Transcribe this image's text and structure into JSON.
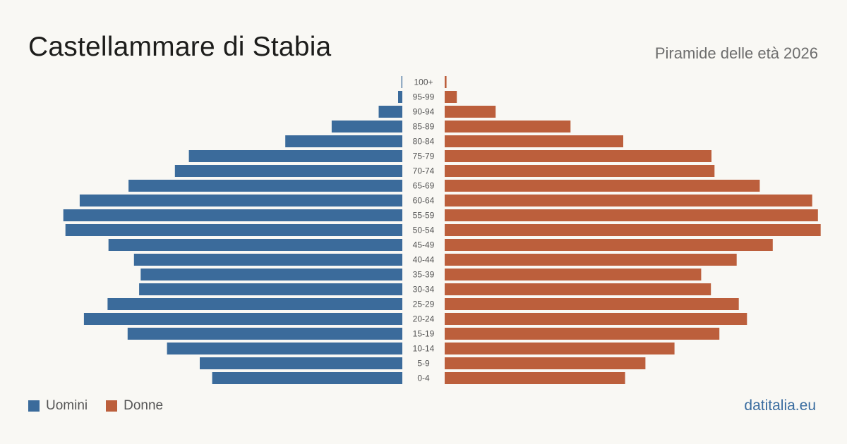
{
  "header": {
    "title": "Castellammare di Stabia",
    "subtitle": "Piramide delle età 2026"
  },
  "legend": {
    "items": [
      {
        "label": "Uomini",
        "color": "#3b6b9b"
      },
      {
        "label": "Donne",
        "color": "#bc5f3c"
      }
    ]
  },
  "footer": {
    "source": "datitalia.eu"
  },
  "chart_data": {
    "type": "bar",
    "orientation": "horizontal",
    "layout": "population-pyramid",
    "categories": [
      "100+",
      "95-99",
      "90-94",
      "85-89",
      "80-84",
      "75-79",
      "70-74",
      "65-69",
      "60-64",
      "55-59",
      "50-54",
      "45-49",
      "40-44",
      "35-39",
      "30-34",
      "25-29",
      "20-24",
      "15-19",
      "10-14",
      "5-9",
      "0-4"
    ],
    "series": [
      {
        "name": "Uomini",
        "color": "#3b6b9b",
        "values": [
          3,
          14,
          78,
          233,
          386,
          704,
          750,
          903,
          1064,
          1118,
          1111,
          969,
          885,
          863,
          868,
          972,
          1050,
          906,
          776,
          668,
          627
        ]
      },
      {
        "name": "Donne",
        "color": "#bc5f3c",
        "values": [
          6,
          40,
          168,
          415,
          589,
          880,
          890,
          1039,
          1212,
          1231,
          1240,
          1082,
          963,
          846,
          878,
          970,
          997,
          906,
          758,
          662,
          595
        ]
      }
    ],
    "xlim": [
      0,
      1250
    ],
    "grid": false,
    "legend_position": "bottom-left"
  }
}
